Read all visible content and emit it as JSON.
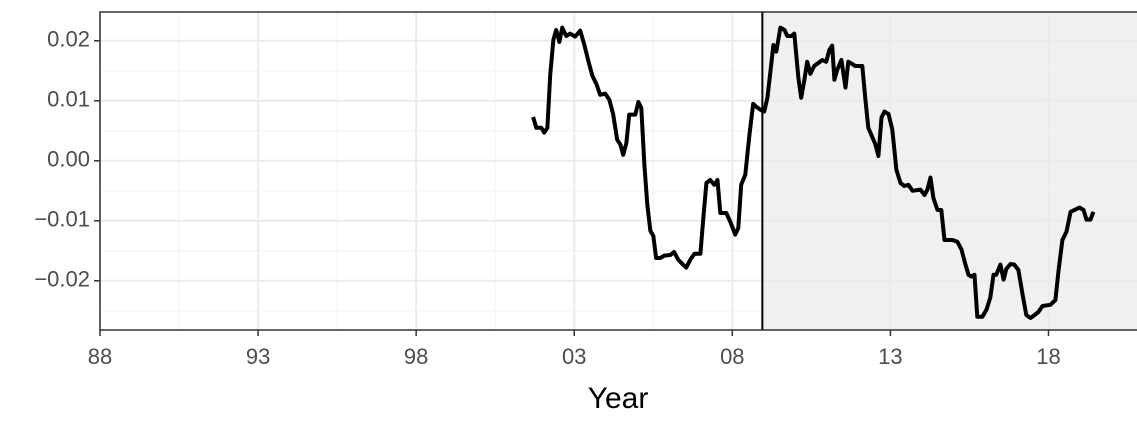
{
  "chart_data": {
    "type": "line",
    "x_label": "Year",
    "xlim": [
      1988,
      2020.8
    ],
    "ylim": [
      -0.0282,
      0.0248
    ],
    "xticks": [
      {
        "value": 1988,
        "label": "88"
      },
      {
        "value": 1993,
        "label": "93"
      },
      {
        "value": 1998,
        "label": "98"
      },
      {
        "value": 2003,
        "label": "03"
      },
      {
        "value": 2008,
        "label": "08"
      },
      {
        "value": 2013,
        "label": "13"
      },
      {
        "value": 2018,
        "label": "18"
      }
    ],
    "yticks": [
      {
        "value": -0.02,
        "label": "−0.02"
      },
      {
        "value": -0.01,
        "label": "−0.01"
      },
      {
        "value": 0,
        "label": "0.00"
      },
      0.01,
      0.02
    ],
    "x_minor_grid": [
      1990.5,
      1995.5,
      2000.5,
      2005.5,
      2010.5,
      2015.5,
      2020.5
    ],
    "y_minor_grid": [
      -0.025,
      -0.015,
      -0.005,
      0.005,
      0.015
    ],
    "grid": true,
    "vline": 2008.95,
    "shade_from": 2008.95,
    "shade_color": "#f0f0f0",
    "series": [
      {
        "color": "#000000",
        "x": [
          2001.7,
          2001.8,
          2001.96,
          2002.05,
          2002.15,
          2002.24,
          2002.34,
          2002.43,
          2002.53,
          2002.62,
          2002.75,
          2002.87,
          2003.03,
          2003.19,
          2003.32,
          2003.44,
          2003.57,
          2003.7,
          2003.82,
          2003.98,
          2004.11,
          2004.23,
          2004.36,
          2004.46,
          2004.55,
          2004.65,
          2004.74,
          2004.93,
          2005.03,
          2005.12,
          2005.22,
          2005.31,
          2005.41,
          2005.5,
          2005.59,
          2005.72,
          2005.85,
          2006.04,
          2006.16,
          2006.29,
          2006.42,
          2006.54,
          2006.67,
          2006.8,
          2006.99,
          2007.08,
          2007.18,
          2007.3,
          2007.43,
          2007.53,
          2007.62,
          2007.81,
          2007.94,
          2008.09,
          2008.19,
          2008.28,
          2008.41,
          2008.54,
          2008.66,
          2008.76,
          2008.89,
          2009.01,
          2009.11,
          2009.2,
          2009.3,
          2009.39,
          2009.52,
          2009.65,
          2009.74,
          2009.87,
          2009.96,
          2010.09,
          2010.18,
          2010.28,
          2010.37,
          2010.47,
          2010.59,
          2010.72,
          2010.85,
          2010.97,
          2011.07,
          2011.16,
          2011.23,
          2011.32,
          2011.45,
          2011.58,
          2011.67,
          2011.77,
          2011.89,
          2012.11,
          2012.21,
          2012.3,
          2012.4,
          2012.53,
          2012.62,
          2012.72,
          2012.81,
          2012.94,
          2013.06,
          2013.19,
          2013.32,
          2013.44,
          2013.57,
          2013.7,
          2013.95,
          2014.08,
          2014.17,
          2014.27,
          2014.36,
          2014.49,
          2014.61,
          2014.71,
          2014.96,
          2015.12,
          2015.25,
          2015.37,
          2015.47,
          2015.56,
          2015.66,
          2015.75,
          2015.91,
          2016.04,
          2016.16,
          2016.26,
          2016.35,
          2016.48,
          2016.58,
          2016.67,
          2016.8,
          2016.92,
          2017.05,
          2017.18,
          2017.3,
          2017.43,
          2017.56,
          2017.68,
          2017.81,
          2018.06,
          2018.22,
          2018.32,
          2018.44,
          2018.57,
          2018.7,
          2018.98,
          2019.11,
          2019.2,
          2019.33,
          2019.42
        ],
        "values": [
          0.0073,
          0.0055,
          0.0055,
          0.0047,
          0.0055,
          0.0143,
          0.0202,
          0.0218,
          0.0198,
          0.0222,
          0.0208,
          0.0212,
          0.0207,
          0.0217,
          0.0193,
          0.0168,
          0.0142,
          0.0128,
          0.011,
          0.0112,
          0.0102,
          0.0078,
          0.0035,
          0.0027,
          0.001,
          0.003,
          0.0077,
          0.0077,
          0.0098,
          0.0088,
          -0.0007,
          -0.0073,
          -0.0117,
          -0.0125,
          -0.0162,
          -0.0162,
          -0.0158,
          -0.0157,
          -0.0152,
          -0.0165,
          -0.0172,
          -0.0178,
          -0.0165,
          -0.0155,
          -0.0155,
          -0.0098,
          -0.0037,
          -0.0032,
          -0.004,
          -0.0032,
          -0.0087,
          -0.0087,
          -0.0102,
          -0.0123,
          -0.0112,
          -0.004,
          -0.0023,
          0.0043,
          0.0095,
          0.009,
          0.0085,
          0.0082,
          0.0105,
          0.0147,
          0.0193,
          0.0182,
          0.0222,
          0.0218,
          0.0208,
          0.0208,
          0.0212,
          0.0138,
          0.0105,
          0.0135,
          0.0165,
          0.0145,
          0.0158,
          0.0163,
          0.0168,
          0.0165,
          0.0185,
          0.0192,
          0.0135,
          0.0152,
          0.0168,
          0.0122,
          0.0165,
          0.0162,
          0.0158,
          0.0158,
          0.0102,
          0.0055,
          0.0043,
          0.0027,
          0.0008,
          0.0072,
          0.0082,
          0.0078,
          0.0052,
          -0.0015,
          -0.0037,
          -0.0042,
          -0.004,
          -0.005,
          -0.0048,
          -0.0057,
          -0.0048,
          -0.0028,
          -0.0062,
          -0.0082,
          -0.0082,
          -0.0132,
          -0.0132,
          -0.0135,
          -0.0148,
          -0.0172,
          -0.019,
          -0.0193,
          -0.019,
          -0.026,
          -0.026,
          -0.0248,
          -0.0228,
          -0.019,
          -0.019,
          -0.0173,
          -0.0198,
          -0.018,
          -0.0172,
          -0.0173,
          -0.0182,
          -0.0223,
          -0.0257,
          -0.0262,
          -0.0257,
          -0.0252,
          -0.0242,
          -0.024,
          -0.0232,
          -0.0182,
          -0.0132,
          -0.0118,
          -0.0085,
          -0.0078,
          -0.0082,
          -0.0098,
          -0.0098,
          -0.0085
        ]
      }
    ]
  }
}
